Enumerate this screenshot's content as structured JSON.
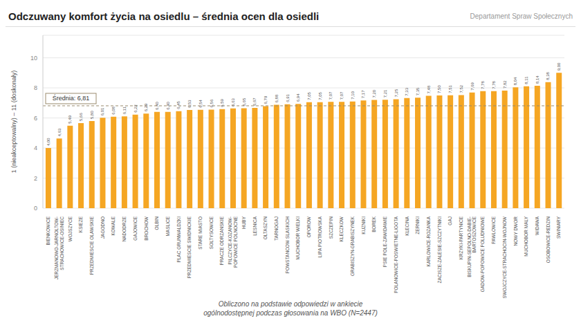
{
  "chart_data": {
    "type": "bar",
    "title": "Odczuwany komfort życia na osiedlu – średnia ocen dla osiedli",
    "ylabel": "1 (nieakceptowalny) – 11 (doskonały)",
    "footer": "Obliczono na podstawie odpowiedzi w ankiecie\nogólnodostępnej podczas głosowania na WBO (N=2447)",
    "branding": "Departament Spraw Społecznych",
    "categories": [
      "BIENKOWICE",
      "JERZMANOWO-JARNOLTOW-\nSTRACHOWICE-OSINIEC",
      "WOJSZYCE",
      "KSIEZE",
      "PRZEDMIESCIE OLAWSKIE",
      "JAGODNO",
      "KOWALE",
      "NADODRZE",
      "GAJOWICE",
      "BROCHOW",
      "OLBIN",
      "MASLICE",
      "PLAC GRUNWALDZKI",
      "PRZEDMIESCIE SWIDNICKIE",
      "STARE MIASTO",
      "SOLTYSOWICE",
      "PRACZE ODRZANSKIE",
      "PILCZYCE-KOZANOW-\nPOPOWICE POLNOCNE",
      "HUBY",
      "LESNICA",
      "OLTASZYN",
      "TARNOGAJ",
      "POWSTANCOW SLASKICH",
      "MUCHOBOR WIELKI",
      "OPOROW",
      "LIPA PIOTROWSKA",
      "SZCZEPIN",
      "KLECZKOW",
      "GRABISZYN-GRABISZYNEK",
      "KUZNIKI",
      "BOREK",
      "PSIE POLE-ZAWIDAWIE",
      "POLANOWICE-POSWIETNE-LIGOTA",
      "KLECINA",
      "ZERNIKI",
      "KARLOWICE-ROZANKA",
      "ZACISZE-ZALESIE-SZCZYTNIKI",
      "GAJ",
      "KRZYKI-PARTYNICE",
      "BISKUPIN-SEPOLNO-DABIE-\nBARTOSZOWICE",
      "GADOW-POPOWICE POLUDNIOWE",
      "PAWLOWICE",
      "SWOJCZYCE-STRACHOCIN-WOJNOW",
      "NOWY DWOR",
      "MUCHOBOR MALY",
      "WIDAWA",
      "OSOBOWICE-REDZIN",
      "SWINIARY"
    ],
    "values": [
      4.0,
      4.63,
      5.49,
      5.66,
      5.8,
      6.01,
      6.08,
      6.11,
      6.22,
      6.29,
      6.4,
      6.4,
      6.45,
      6.53,
      6.54,
      6.56,
      6.59,
      6.63,
      6.65,
      6.67,
      6.79,
      6.88,
      6.91,
      6.94,
      7.05,
      7.05,
      7.07,
      7.07,
      7.1,
      7.17,
      7.2,
      7.21,
      7.25,
      7.33,
      7.35,
      7.48,
      7.5,
      7.51,
      7.52,
      7.69,
      7.78,
      7.78,
      7.82,
      8.04,
      8.11,
      8.14,
      8.38,
      9.0
    ],
    "value_labels": [
      "4,00",
      "4,63",
      "5,49",
      "5,66",
      "5,80",
      "6,01",
      "6,08",
      "6,11",
      "6,22",
      "6,29",
      "6,40",
      "6,40",
      "6,45",
      "6,53",
      "6,54",
      "6,56",
      "6,59",
      "6,63",
      "6,65",
      "6,67",
      "6,79",
      "6,88",
      "6,91",
      "6,94",
      "7,05",
      "7,05",
      "7,07",
      "7,07",
      "7,10",
      "7,17",
      "7,20",
      "7,21",
      "7,25",
      "7,33",
      "7,35",
      "7,48",
      "7,50",
      "7,51",
      "7,52",
      "7,69",
      "7,78",
      "7,78",
      "7,82",
      "8,04",
      "8,11",
      "8,14",
      "8,38",
      "9,00"
    ],
    "data_labels": true,
    "color": "#F5A623",
    "ylim": [
      0,
      11.5
    ],
    "yticks": [
      0,
      2,
      4,
      6,
      8,
      10
    ],
    "grid": true,
    "mean_line": {
      "value": 6.81,
      "label": "Średnia: 6,81",
      "color": "#9B8B6E",
      "line_style": "dashed"
    }
  }
}
